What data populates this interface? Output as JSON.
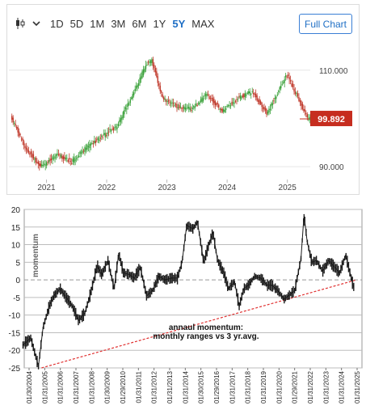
{
  "toolbar": {
    "chart_type_icon": "candlestick-icon",
    "timeframes": [
      "1D",
      "5D",
      "1M",
      "3M",
      "6M",
      "1Y",
      "5Y",
      "MAX"
    ],
    "active_timeframe": "5Y",
    "full_chart_label": "Full Chart"
  },
  "colors": {
    "up": "#3aa13a",
    "down": "#c0392b",
    "price_badge": "#c62d1f",
    "accent": "#1f6fc5",
    "momentum_line": "#1a1a1a",
    "trend_line": "#e03030"
  },
  "chart_data": [
    {
      "type": "candlestick",
      "x_labels": [
        "2021",
        "2022",
        "2023",
        "2024",
        "2025"
      ],
      "y_ticks": [
        "110.000",
        "90.000"
      ],
      "ylim": [
        87.5,
        116
      ],
      "last_price_label": "99.892",
      "grid": true,
      "series": [
        {
          "x": [
            "2020-06",
            "2020-09",
            "2020-12",
            "2021-03",
            "2021-06",
            "2021-09",
            "2021-12",
            "2022-03",
            "2022-06",
            "2022-09",
            "2022-10",
            "2022-12",
            "2023-03",
            "2023-06",
            "2023-09",
            "2023-12",
            "2024-03",
            "2024-06",
            "2024-09",
            "2024-12",
            "2025-01",
            "2025-03",
            "2025-05"
          ],
          "values": [
            100.1,
            93.5,
            90.0,
            92.5,
            91.0,
            94.0,
            96.2,
            98.3,
            104.5,
            111.5,
            112.0,
            104.5,
            102.5,
            102.0,
            105.0,
            101.5,
            104.2,
            105.5,
            101.0,
            107.5,
            109.0,
            104.5,
            99.9
          ]
        }
      ]
    },
    {
      "type": "line",
      "xlabels": [
        "01/30/2004",
        "01/31/2005",
        "01/31/2006",
        "01/31/2007",
        "01/31/2008",
        "01/30/2009",
        "01/29/2010",
        "01/31/2011",
        "01/31/2012",
        "01/31/2013",
        "01/31/2014",
        "01/30/2015",
        "01/29/2016",
        "01/31/2017",
        "01/31/2018",
        "01/31/2019",
        "01/31/2020",
        "01/29/2021",
        "01/31/2022",
        "01/31/2023",
        "01/31/2024",
        "01/31/2025"
      ],
      "yticks": [
        20,
        15,
        10,
        5,
        0,
        -5,
        -10,
        -15,
        -20,
        -25
      ],
      "ylim": [
        -25,
        20
      ],
      "ylabel": "momentum",
      "annotation": [
        "annaul momentum:",
        "monthly ranges vs 3 yr.avg."
      ],
      "series": [
        {
          "x": [
            2004.0,
            2004.5,
            2005.0,
            2005.3,
            2005.7,
            2006.0,
            2006.4,
            2006.8,
            2007.2,
            2007.6,
            2008.0,
            2008.4,
            2008.8,
            2009.1,
            2009.5,
            2009.9,
            2010.2,
            2010.5,
            2010.9,
            2011.2,
            2011.6,
            2012.0,
            2012.4,
            2012.8,
            2013.2,
            2013.6,
            2014.0,
            2014.3,
            2014.6,
            2015.0,
            2015.3,
            2015.7,
            2016.0,
            2016.3,
            2016.6,
            2017.0,
            2017.3,
            2017.7,
            2018.0,
            2018.3,
            2018.6,
            2019.0,
            2019.4,
            2019.8,
            2020.1,
            2020.5,
            2020.9,
            2021.2,
            2021.6,
            2022.0,
            2022.2,
            2022.4,
            2022.7,
            2023.0,
            2023.4,
            2023.8,
            2024.1,
            2024.5,
            2024.9,
            2025.2,
            2025.4
          ],
          "values": [
            -18.5,
            -16.5,
            -24.5,
            -13.5,
            -7.5,
            -4.5,
            -2.5,
            -5.0,
            -7.5,
            -11.5,
            -9.5,
            -3.5,
            4.0,
            1.5,
            5.5,
            -2.5,
            7.5,
            2.0,
            1.5,
            0.5,
            3.5,
            -4.5,
            -3.0,
            1.0,
            0.0,
            0.5,
            0.5,
            5.0,
            15.5,
            14.5,
            16.5,
            5.0,
            9.5,
            13.5,
            5.5,
            2.0,
            -2.5,
            -0.5,
            -7.5,
            -2.5,
            -1.5,
            1.0,
            0.5,
            -1.5,
            -1.5,
            -3.0,
            -5.5,
            -4.5,
            -3.0,
            6.0,
            18.5,
            11.0,
            5.0,
            5.5,
            2.5,
            5.5,
            4.0,
            2.0,
            7.0,
            1.5,
            -2.0
          ]
        }
      ],
      "trend": {
        "x": [
          2005.2,
          2025.6
        ],
        "values": [
          -25,
          0
        ]
      },
      "grid": true
    }
  ]
}
